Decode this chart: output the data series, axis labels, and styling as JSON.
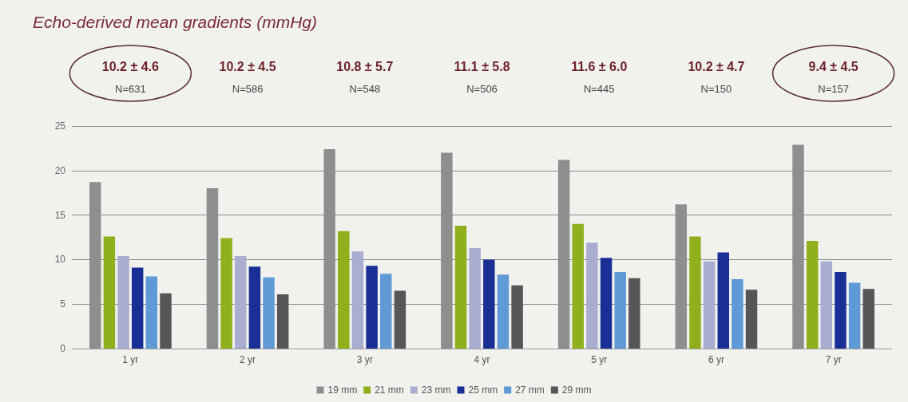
{
  "chart_data": {
    "type": "bar",
    "title": "Echo-derived mean gradients (mmHg)",
    "categories": [
      "1 yr",
      "2 yr",
      "3 yr",
      "4 yr",
      "5 yr",
      "6 yr",
      "7 yr"
    ],
    "series": [
      {
        "name": "19 mm",
        "color": "#8c8f8e",
        "values": [
          18.7,
          18.0,
          22.4,
          22.0,
          21.2,
          16.2,
          22.9
        ]
      },
      {
        "name": "21 mm",
        "color": "#8fb01c",
        "values": [
          12.6,
          12.4,
          13.2,
          13.8,
          14.0,
          12.6,
          12.1
        ]
      },
      {
        "name": "23 mm",
        "color": "#a9adcf",
        "values": [
          10.4,
          10.4,
          10.9,
          11.3,
          11.9,
          9.8,
          9.8
        ]
      },
      {
        "name": "25 mm",
        "color": "#1a2f96",
        "values": [
          9.1,
          9.2,
          9.3,
          10.0,
          10.2,
          10.8,
          8.6
        ]
      },
      {
        "name": "27 mm",
        "color": "#5f9ad6",
        "values": [
          8.1,
          8.0,
          8.4,
          8.3,
          8.6,
          7.8,
          7.4
        ]
      },
      {
        "name": "29 mm",
        "color": "#555655",
        "values": [
          6.2,
          6.1,
          6.5,
          7.1,
          7.9,
          6.6,
          6.7
        ]
      }
    ],
    "ylim": [
      0,
      25
    ],
    "yticks": [
      0,
      5,
      10,
      15,
      20,
      25
    ],
    "grid": "y",
    "legend": "bottom",
    "annotations": [
      "10.2 ± 4.6",
      "N=631",
      "10.2 ± 4.5",
      "N=586",
      "10.8 ± 5.7",
      "N=548",
      "11.1 ± 5.8",
      "N=506",
      "11.6 ± 6.0",
      "N=445",
      "10.2 ± 4.7",
      "N=150",
      "9.4 ± 4.5",
      "N=157"
    ]
  }
}
